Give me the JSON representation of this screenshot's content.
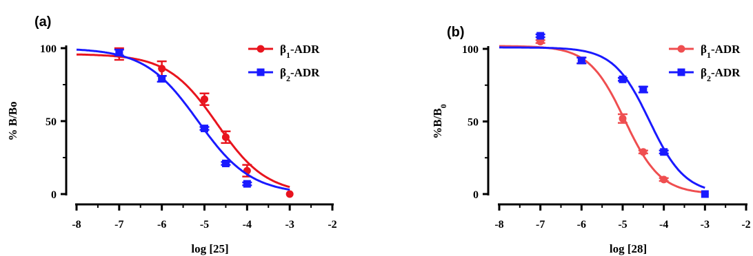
{
  "chart_data": [
    {
      "type": "line",
      "panel_label": "(a)",
      "xlabel": "log [25]",
      "ylabel": "% B/Bo",
      "xlim": [
        -8,
        -2
      ],
      "ylim": [
        0,
        100
      ],
      "xticks": [
        -8,
        -7,
        -6,
        -5,
        -4,
        -3,
        -2
      ],
      "xtick_labels": [
        "-8",
        "-7",
        "-6",
        "-5",
        "-4",
        "-3",
        "-2"
      ],
      "yticks": [
        0,
        50,
        100
      ],
      "ytick_labels": [
        "0",
        "50",
        "100"
      ],
      "legend_position": "top-right",
      "series": [
        {
          "name": "β1-ADR",
          "legend_base": "β",
          "legend_sub": "1",
          "legend_suffix": "-ADR",
          "color": "#e8141e",
          "marker": "circle",
          "x": [
            -7,
            -6,
            -5,
            -4.5,
            -4,
            -3
          ],
          "y": [
            96,
            86,
            65,
            39,
            16,
            0
          ],
          "error": [
            4,
            5,
            4,
            4,
            4,
            0
          ],
          "fit": {
            "top": 96,
            "bottom": 0,
            "logEC50": -4.7,
            "hill": 0.75
          }
        },
        {
          "name": "β2-ADR",
          "legend_base": "β",
          "legend_sub": "2",
          "legend_suffix": "-ADR",
          "color": "#1a1aff",
          "marker": "square",
          "x": [
            -7,
            -6,
            -5,
            -4.5,
            -4
          ],
          "y": [
            97,
            79,
            45,
            21,
            7
          ],
          "error": [
            2,
            2,
            1,
            1,
            1
          ],
          "fit": {
            "top": 100,
            "bottom": 0,
            "logEC50": -5.15,
            "hill": 0.7
          }
        }
      ]
    },
    {
      "type": "line",
      "panel_label": "(b)",
      "xlabel": "log [28]",
      "ylabel": "%B/B0",
      "ylabel_base": "%B/B",
      "ylabel_sub": "0",
      "xlim": [
        -8,
        -2
      ],
      "ylim": [
        0,
        100
      ],
      "xticks": [
        -8,
        -7,
        -6,
        -5,
        -4,
        -3,
        -2
      ],
      "xtick_labels": [
        "-8",
        "-7",
        "-6",
        "-5",
        "-4",
        "-3",
        "-2"
      ],
      "yticks": [
        0,
        50,
        100
      ],
      "ytick_labels": [
        "0",
        "50",
        "100"
      ],
      "legend_position": "top-right",
      "series": [
        {
          "name": "β1-ADR",
          "legend_base": "β",
          "legend_sub": "1",
          "legend_suffix": "-ADR",
          "color": "#ef4e50",
          "marker": "circle",
          "x": [
            -7,
            -6,
            -5,
            -4.5,
            -4,
            -3
          ],
          "y": [
            105,
            92,
            52,
            29,
            10,
            0
          ],
          "error": [
            1,
            2,
            3,
            1,
            1,
            0
          ],
          "fit": {
            "top": 102,
            "bottom": 0,
            "logEC50": -4.95,
            "hill": 1.0
          }
        },
        {
          "name": "β2-ADR",
          "legend_base": "β",
          "legend_sub": "2",
          "legend_suffix": "-ADR",
          "color": "#1a1aff",
          "marker": "square",
          "x": [
            -7,
            -6,
            -5,
            -4.5,
            -4,
            -3
          ],
          "y": [
            109,
            92,
            79,
            72,
            29,
            0
          ],
          "error": [
            1,
            2,
            1,
            2,
            1,
            0
          ],
          "fit": {
            "top": 101,
            "bottom": 0,
            "logEC50": -4.35,
            "hill": 1.0
          }
        }
      ]
    }
  ]
}
